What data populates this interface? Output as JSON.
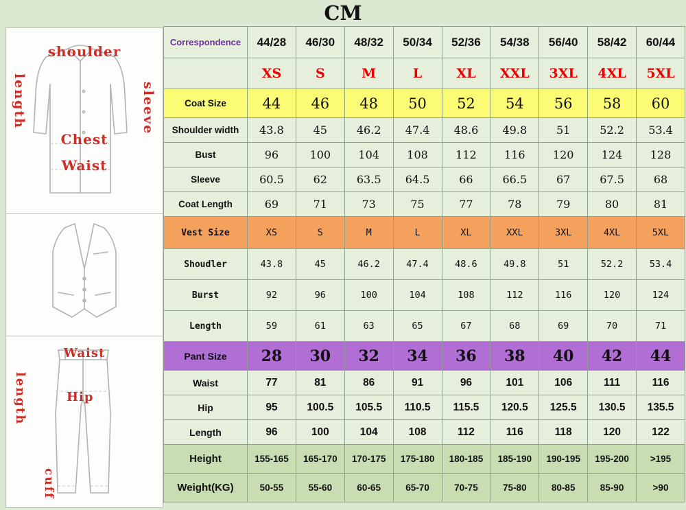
{
  "title": "CM",
  "colors": {
    "page_bg": "#dde8d3",
    "cell_bg": "#e5efdc",
    "coat_row_bg": "#fbfb74",
    "vest_row_bg": "#f4a15e",
    "pant_row_bg": "#b16ed5",
    "footer_row_bg": "#c8deb2",
    "letters_color": "#e80000",
    "correspondence_color": "#7030a0",
    "sketch_label_color": "#c92f28"
  },
  "diagrams": {
    "jacket": {
      "top_label": "shoulder",
      "left_label": "length",
      "right_label": "sleeve",
      "chest_label": "Chest",
      "waist_label": "Waist"
    },
    "pants": {
      "top_label": "Waist",
      "left_label": "length",
      "hip_label": "Hip",
      "cuff_label": "cuff"
    }
  },
  "chart_data": {
    "type": "table",
    "title": "CM",
    "unit": "CM",
    "columns": [
      "Correspondence",
      "44/28",
      "46/30",
      "48/32",
      "50/34",
      "52/36",
      "54/38",
      "56/40",
      "58/42",
      "60/44"
    ],
    "rows": [
      {
        "label": "",
        "style": "letters",
        "values": [
          "XS",
          "S",
          "M",
          "L",
          "XL",
          "XXL",
          "3XL",
          "4XL",
          "5XL"
        ]
      },
      {
        "label": "Coat Size",
        "style": "coat-size",
        "values": [
          "44",
          "46",
          "48",
          "50",
          "52",
          "54",
          "56",
          "58",
          "60"
        ]
      },
      {
        "label": "Shoulder width",
        "style": "coat",
        "values": [
          "43.8",
          "45",
          "46.2",
          "47.4",
          "48.6",
          "49.8",
          "51",
          "52.2",
          "53.4"
        ]
      },
      {
        "label": "Bust",
        "style": "coat",
        "values": [
          "96",
          "100",
          "104",
          "108",
          "112",
          "116",
          "120",
          "124",
          "128"
        ]
      },
      {
        "label": "Sleeve",
        "style": "coat",
        "values": [
          "60.5",
          "62",
          "63.5",
          "64.5",
          "66",
          "66.5",
          "67",
          "67.5",
          "68"
        ]
      },
      {
        "label": "Coat Length",
        "style": "coat",
        "values": [
          "69",
          "71",
          "73",
          "75",
          "77",
          "78",
          "79",
          "80",
          "81"
        ]
      },
      {
        "label": "Vest Size",
        "style": "vest-size",
        "values": [
          "XS",
          "S",
          "M",
          "L",
          "XL",
          "XXL",
          "3XL",
          "4XL",
          "5XL"
        ]
      },
      {
        "label": "Shoudler",
        "style": "vest",
        "values": [
          "43.8",
          "45",
          "46.2",
          "47.4",
          "48.6",
          "49.8",
          "51",
          "52.2",
          "53.4"
        ]
      },
      {
        "label": "Burst",
        "style": "vest",
        "values": [
          "92",
          "96",
          "100",
          "104",
          "108",
          "112",
          "116",
          "120",
          "124"
        ]
      },
      {
        "label": "Length",
        "style": "vest",
        "values": [
          "59",
          "61",
          "63",
          "65",
          "67",
          "68",
          "69",
          "70",
          "71"
        ]
      },
      {
        "label": "Pant Size",
        "style": "pant-size",
        "values": [
          "28",
          "30",
          "32",
          "34",
          "36",
          "38",
          "40",
          "42",
          "44"
        ]
      },
      {
        "label": "Waist",
        "style": "pant",
        "values": [
          "77",
          "81",
          "86",
          "91",
          "96",
          "101",
          "106",
          "111",
          "116"
        ]
      },
      {
        "label": "Hip",
        "style": "pant",
        "values": [
          "95",
          "100.5",
          "105.5",
          "110.5",
          "115.5",
          "120.5",
          "125.5",
          "130.5",
          "135.5"
        ]
      },
      {
        "label": "Length",
        "style": "pant",
        "values": [
          "96",
          "100",
          "104",
          "108",
          "112",
          "116",
          "118",
          "120",
          "122"
        ]
      },
      {
        "label": "Height",
        "style": "footer",
        "values": [
          "155-165",
          "165-170",
          "170-175",
          "175-180",
          "180-185",
          "185-190",
          "190-195",
          "195-200",
          ">195"
        ]
      },
      {
        "label": "Weight(KG)",
        "style": "footer",
        "values": [
          "50-55",
          "55-60",
          "60-65",
          "65-70",
          "70-75",
          "75-80",
          "80-85",
          "85-90",
          ">90"
        ]
      }
    ]
  }
}
